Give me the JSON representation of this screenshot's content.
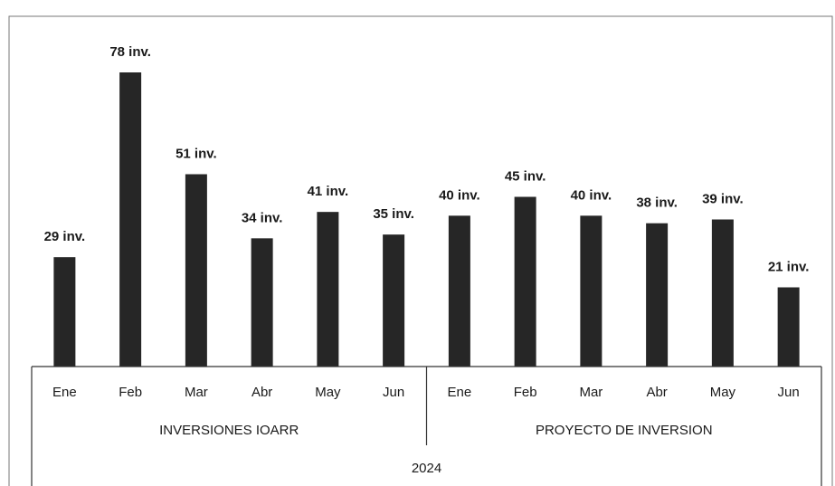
{
  "chart_data": {
    "type": "bar",
    "categories": [
      "Ene",
      "Feb",
      "Mar",
      "Abr",
      "May",
      "Jun",
      "Ene",
      "Feb",
      "Mar",
      "Abr",
      "May",
      "Jun"
    ],
    "groups": [
      "INVERSIONES IOARR",
      "PROYECTO DE INVERSION"
    ],
    "year": "2024",
    "values": [
      29,
      78,
      51,
      34,
      41,
      35,
      40,
      45,
      40,
      38,
      39,
      21
    ],
    "value_labels": [
      "29 inv.",
      "78 inv.",
      "51 inv.",
      "34 inv.",
      "41 inv.",
      "35 inv.",
      "40 inv.",
      "45 inv.",
      "40 inv.",
      "38 inv.",
      "39 inv.",
      "21 inv."
    ],
    "color": "#262626"
  }
}
